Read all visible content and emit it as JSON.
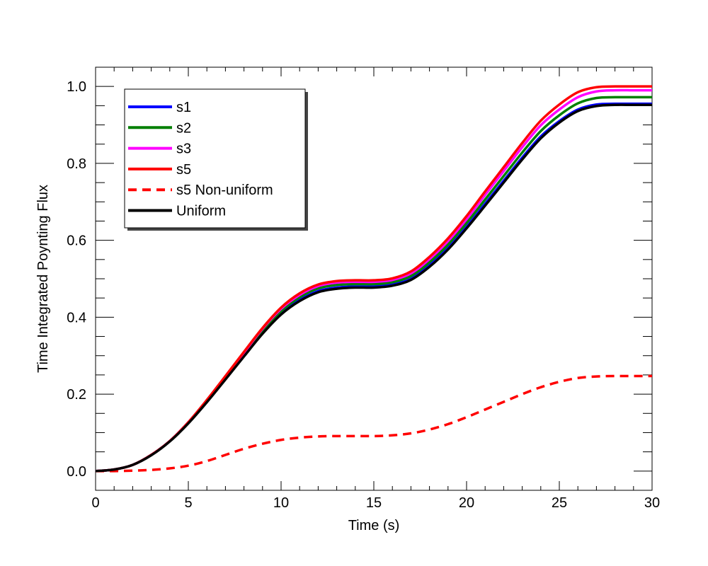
{
  "chart_data": {
    "type": "line",
    "title": "",
    "xlabel": "Time (s)",
    "ylabel": "Time Integrated Poynting Flux",
    "xlim": [
      0,
      30
    ],
    "ylim": [
      -0.05,
      1.05
    ],
    "xticks": [
      0,
      5,
      10,
      15,
      20,
      25,
      30
    ],
    "xtick_labels": [
      "0",
      "5",
      "10",
      "15",
      "20",
      "25",
      "30"
    ],
    "yticks": [
      0.0,
      0.2,
      0.4,
      0.6,
      0.8,
      1.0
    ],
    "ytick_labels": [
      "0.0",
      "0.2",
      "0.4",
      "0.6",
      "0.8",
      "1.0"
    ],
    "grid": false,
    "legend_position": "top-left",
    "x": [
      0,
      1,
      2,
      3,
      4,
      5,
      6,
      7,
      8,
      9,
      10,
      11,
      12,
      13,
      14,
      15,
      16,
      17,
      18,
      19,
      20,
      21,
      22,
      23,
      24,
      25,
      26,
      27,
      28,
      29,
      30
    ],
    "series": [
      {
        "name": "s1",
        "color": "#0000ff",
        "style": "solid",
        "values": [
          0.0,
          0.004,
          0.016,
          0.042,
          0.078,
          0.125,
          0.18,
          0.24,
          0.3,
          0.36,
          0.41,
          0.445,
          0.468,
          0.477,
          0.48,
          0.48,
          0.485,
          0.5,
          0.535,
          0.58,
          0.635,
          0.695,
          0.755,
          0.815,
          0.87,
          0.91,
          0.94,
          0.953,
          0.955,
          0.955,
          0.955
        ]
      },
      {
        "name": "s2",
        "color": "#007f00",
        "style": "solid",
        "values": [
          0.0,
          0.004,
          0.016,
          0.042,
          0.078,
          0.126,
          0.182,
          0.243,
          0.304,
          0.365,
          0.416,
          0.452,
          0.475,
          0.484,
          0.486,
          0.486,
          0.491,
          0.507,
          0.543,
          0.589,
          0.645,
          0.706,
          0.767,
          0.828,
          0.884,
          0.925,
          0.956,
          0.97,
          0.972,
          0.972,
          0.972
        ]
      },
      {
        "name": "s3",
        "color": "#ff00ff",
        "style": "solid",
        "values": [
          0.0,
          0.004,
          0.016,
          0.042,
          0.078,
          0.127,
          0.184,
          0.246,
          0.308,
          0.37,
          0.422,
          0.458,
          0.481,
          0.49,
          0.492,
          0.492,
          0.497,
          0.514,
          0.551,
          0.598,
          0.655,
          0.718,
          0.78,
          0.842,
          0.899,
          0.94,
          0.972,
          0.987,
          0.99,
          0.99,
          0.99
        ]
      },
      {
        "name": "s5",
        "color": "#ff0000",
        "style": "solid",
        "values": [
          0.0,
          0.004,
          0.016,
          0.042,
          0.078,
          0.127,
          0.185,
          0.247,
          0.31,
          0.372,
          0.425,
          0.462,
          0.485,
          0.494,
          0.496,
          0.496,
          0.501,
          0.519,
          0.557,
          0.605,
          0.663,
          0.727,
          0.79,
          0.853,
          0.911,
          0.953,
          0.985,
          0.998,
          1.0,
          1.0,
          1.0
        ]
      },
      {
        "name": "s5 Non-uniform",
        "color": "#ff0000",
        "style": "dashed",
        "values": [
          0.0,
          0.0,
          0.001,
          0.003,
          0.007,
          0.014,
          0.026,
          0.042,
          0.058,
          0.071,
          0.081,
          0.087,
          0.09,
          0.091,
          0.091,
          0.091,
          0.093,
          0.098,
          0.108,
          0.122,
          0.14,
          0.16,
          0.18,
          0.2,
          0.218,
          0.232,
          0.242,
          0.246,
          0.247,
          0.247,
          0.247
        ]
      },
      {
        "name": "Uniform",
        "color": "#000000",
        "style": "solid",
        "values": [
          0.0,
          0.004,
          0.016,
          0.041,
          0.077,
          0.124,
          0.179,
          0.238,
          0.298,
          0.357,
          0.407,
          0.442,
          0.465,
          0.474,
          0.477,
          0.477,
          0.482,
          0.497,
          0.531,
          0.576,
          0.631,
          0.69,
          0.75,
          0.81,
          0.865,
          0.906,
          0.936,
          0.949,
          0.952,
          0.952,
          0.952
        ]
      }
    ]
  }
}
